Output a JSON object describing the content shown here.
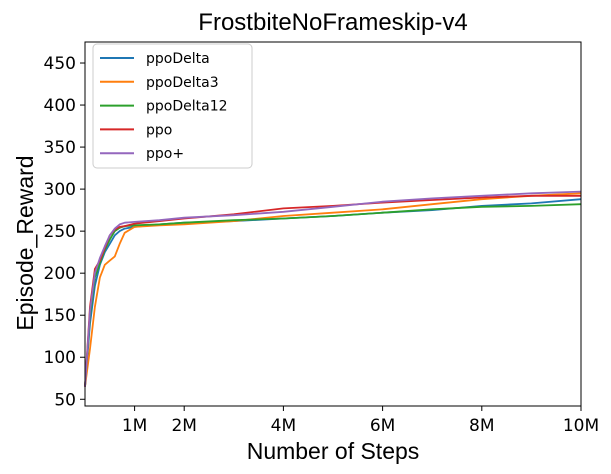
{
  "chart_data": {
    "type": "line",
    "title": "FrostbiteNoFrameskip-v4",
    "xlabel": "Number of Steps",
    "ylabel": "Episode_Reward",
    "xlim": [
      0,
      10000000
    ],
    "ylim": [
      42,
      475
    ],
    "x_ticks": [
      {
        "value": 1000000,
        "label": "1M"
      },
      {
        "value": 2000000,
        "label": "2M"
      },
      {
        "value": 4000000,
        "label": "4M"
      },
      {
        "value": 6000000,
        "label": "6M"
      },
      {
        "value": 8000000,
        "label": "8M"
      },
      {
        "value": 10000000,
        "label": "10M"
      }
    ],
    "y_ticks": [
      {
        "value": 50,
        "label": "50"
      },
      {
        "value": 100,
        "label": "100"
      },
      {
        "value": 150,
        "label": "150"
      },
      {
        "value": 200,
        "label": "200"
      },
      {
        "value": 250,
        "label": "250"
      },
      {
        "value": 300,
        "label": "300"
      },
      {
        "value": 350,
        "label": "350"
      },
      {
        "value": 400,
        "label": "400"
      },
      {
        "value": 450,
        "label": "450"
      }
    ],
    "grid": false,
    "legend_position": "top-left",
    "series": [
      {
        "name": "ppoDelta",
        "color": "#1f77b4",
        "x": [
          0,
          100000,
          200000,
          300000,
          400000,
          500000,
          600000,
          700000,
          800000,
          1000000,
          1500000,
          2000000,
          3000000,
          4000000,
          5000000,
          6000000,
          7000000,
          8000000,
          9000000,
          10000000
        ],
        "y": [
          65,
          140,
          185,
          210,
          225,
          235,
          245,
          250,
          253,
          255,
          258,
          260,
          262,
          265,
          268,
          272,
          275,
          280,
          283,
          288
        ]
      },
      {
        "name": "ppoDelta3",
        "color": "#ff7f0e",
        "x": [
          0,
          100000,
          200000,
          300000,
          400000,
          500000,
          600000,
          700000,
          800000,
          1000000,
          1500000,
          2000000,
          3000000,
          4000000,
          5000000,
          6000000,
          7000000,
          8000000,
          9000000,
          10000000
        ],
        "y": [
          65,
          110,
          160,
          195,
          210,
          215,
          220,
          235,
          248,
          255,
          257,
          258,
          262,
          268,
          272,
          276,
          282,
          288,
          292,
          295
        ]
      },
      {
        "name": "ppoDelta12",
        "color": "#2ca02c",
        "x": [
          0,
          100000,
          200000,
          300000,
          400000,
          500000,
          600000,
          700000,
          800000,
          1000000,
          1500000,
          2000000,
          3000000,
          4000000,
          5000000,
          6000000,
          7000000,
          8000000,
          9000000,
          10000000
        ],
        "y": [
          65,
          150,
          195,
          212,
          228,
          240,
          250,
          254,
          256,
          257,
          258,
          260,
          263,
          265,
          268,
          272,
          276,
          279,
          280,
          282
        ]
      },
      {
        "name": "ppo",
        "color": "#d62728",
        "x": [
          0,
          100000,
          200000,
          300000,
          400000,
          500000,
          600000,
          700000,
          800000,
          1000000,
          1500000,
          2000000,
          3000000,
          4000000,
          5000000,
          6000000,
          7000000,
          8000000,
          9000000,
          10000000
        ],
        "y": [
          65,
          160,
          205,
          215,
          230,
          245,
          252,
          255,
          256,
          259,
          262,
          265,
          270,
          277,
          280,
          284,
          287,
          290,
          292,
          292
        ]
      },
      {
        "name": "ppo+",
        "color": "#9467bd",
        "x": [
          0,
          100000,
          200000,
          300000,
          400000,
          500000,
          600000,
          700000,
          800000,
          1000000,
          1500000,
          2000000,
          3000000,
          4000000,
          5000000,
          6000000,
          7000000,
          8000000,
          9000000,
          10000000
        ],
        "y": [
          65,
          155,
          200,
          218,
          232,
          245,
          253,
          258,
          260,
          261,
          263,
          266,
          269,
          273,
          279,
          285,
          289,
          292,
          295,
          297
        ]
      }
    ]
  }
}
